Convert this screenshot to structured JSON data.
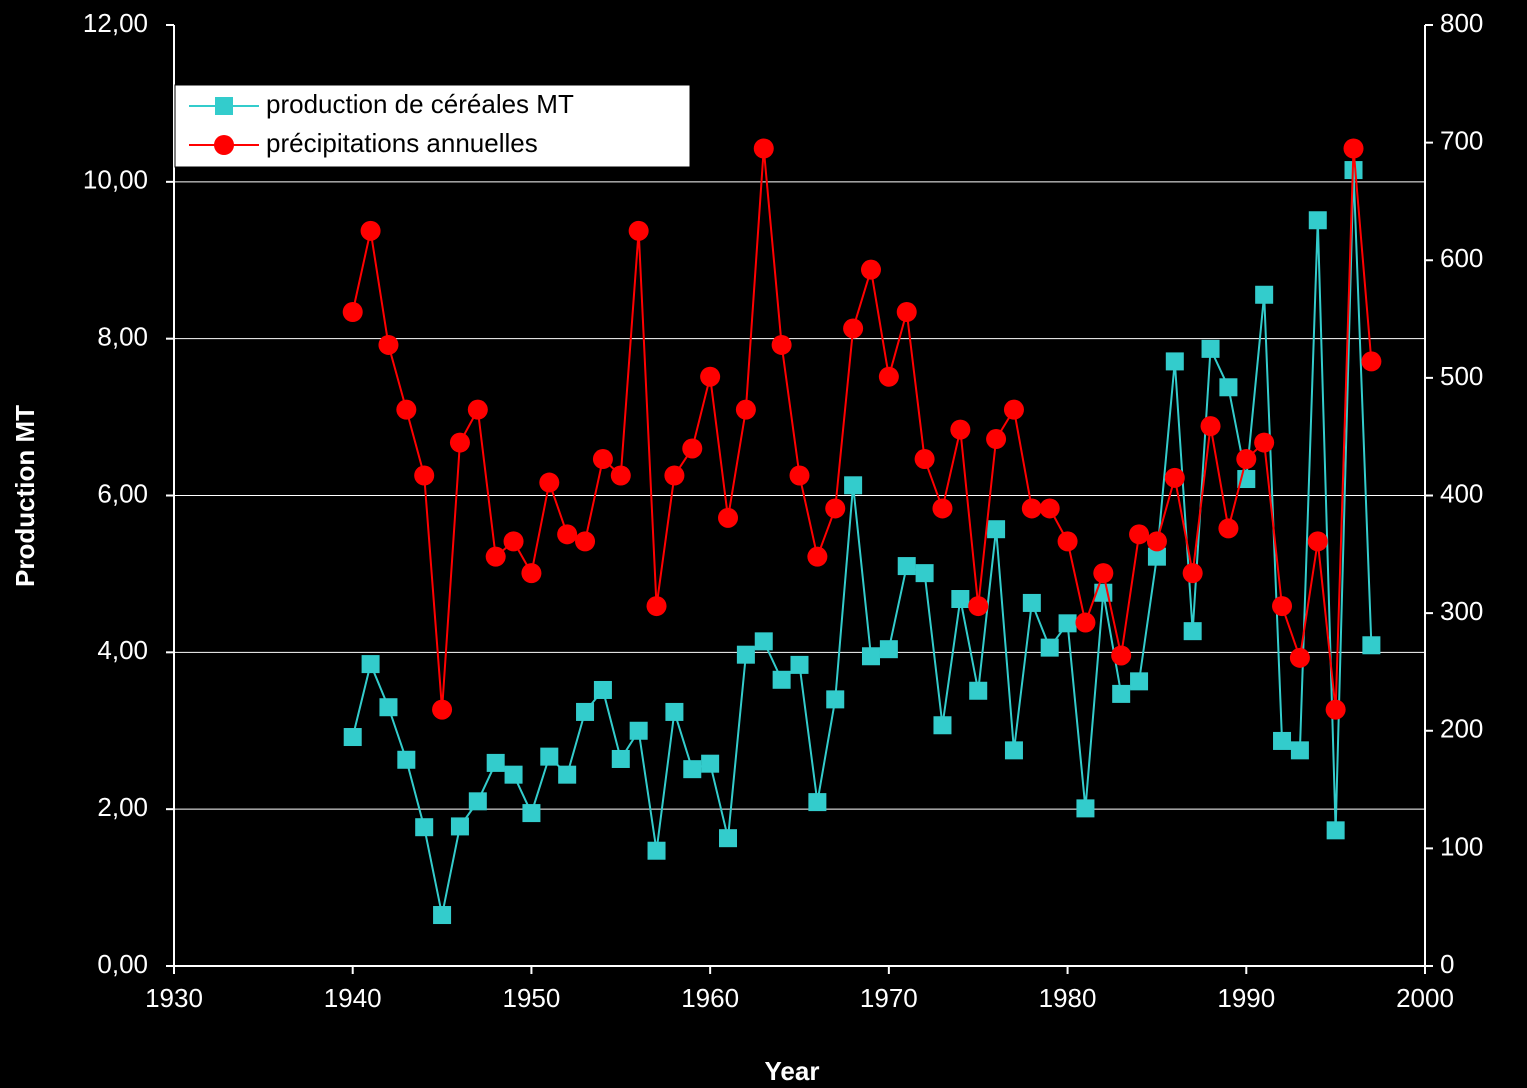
{
  "chart_data": {
    "type": "line",
    "xlabel": "Year",
    "ylabel": "Production MT",
    "x": [
      1940,
      1941,
      1942,
      1943,
      1944,
      1945,
      1946,
      1947,
      1948,
      1949,
      1950,
      1951,
      1952,
      1953,
      1954,
      1955,
      1956,
      1957,
      1958,
      1959,
      1960,
      1961,
      1962,
      1963,
      1964,
      1965,
      1966,
      1967,
      1968,
      1969,
      1970,
      1971,
      1972,
      1973,
      1974,
      1975,
      1976,
      1977,
      1978,
      1979,
      1980,
      1981,
      1982,
      1983,
      1984,
      1985,
      1986,
      1987,
      1988,
      1989,
      1990,
      1991,
      1992,
      1993,
      1994,
      1995,
      1996,
      1997
    ],
    "series": [
      {
        "name": "production de céréales MT",
        "color": "#33cccc",
        "marker": "square",
        "values": [
          2.92,
          3.85,
          3.3,
          2.63,
          1.77,
          0.65,
          1.78,
          2.1,
          2.59,
          2.44,
          1.95,
          2.67,
          2.44,
          3.24,
          3.52,
          2.64,
          3.0,
          1.47,
          3.24,
          2.51,
          2.58,
          1.63,
          3.97,
          4.14,
          3.65,
          3.84,
          2.09,
          3.4,
          6.13,
          3.95,
          4.04,
          5.1,
          5.01,
          3.07,
          4.68,
          3.51,
          5.57,
          2.75,
          4.63,
          4.06,
          4.37,
          2.01,
          4.76,
          3.47,
          3.63,
          5.22,
          7.71,
          4.27,
          7.87,
          7.38,
          6.21,
          8.56,
          2.87,
          2.75,
          9.51,
          1.73,
          10.15,
          4.09
        ]
      },
      {
        "name": "précipitations annuelles",
        "color": "#ff0000",
        "marker": "circle",
        "axis": "y2",
        "values": [
          556,
          625,
          528,
          473,
          417,
          218,
          445,
          473,
          348,
          361,
          334,
          411,
          367,
          361,
          431,
          417,
          625,
          306,
          417,
          440,
          501,
          381,
          473,
          695,
          528,
          417,
          348,
          389,
          542,
          592,
          501,
          556,
          431,
          389,
          456,
          306,
          448,
          473,
          389,
          389,
          361,
          292,
          334,
          264,
          367,
          361,
          415,
          334,
          459,
          372,
          431,
          445,
          306,
          262,
          361,
          218,
          695,
          514
        ]
      }
    ],
    "xlim": [
      1930,
      2000
    ],
    "xticks": [
      1930,
      1940,
      1950,
      1960,
      1970,
      1980,
      1990,
      2000
    ],
    "ylim": [
      0,
      12
    ],
    "yticks": [
      {
        "value": 0,
        "label": "0,00"
      },
      {
        "value": 2,
        "label": "2,00"
      },
      {
        "value": 4,
        "label": "4,00"
      },
      {
        "value": 6,
        "label": "6,00"
      },
      {
        "value": 8,
        "label": "8,00"
      },
      {
        "value": 10,
        "label": "10,00"
      },
      {
        "value": 12,
        "label": "12,00"
      }
    ],
    "y2lim": [
      0,
      800
    ],
    "y2ticks": [
      0,
      100,
      200,
      300,
      400,
      500,
      600,
      700,
      800
    ],
    "grid": true,
    "legend": "upper left"
  }
}
